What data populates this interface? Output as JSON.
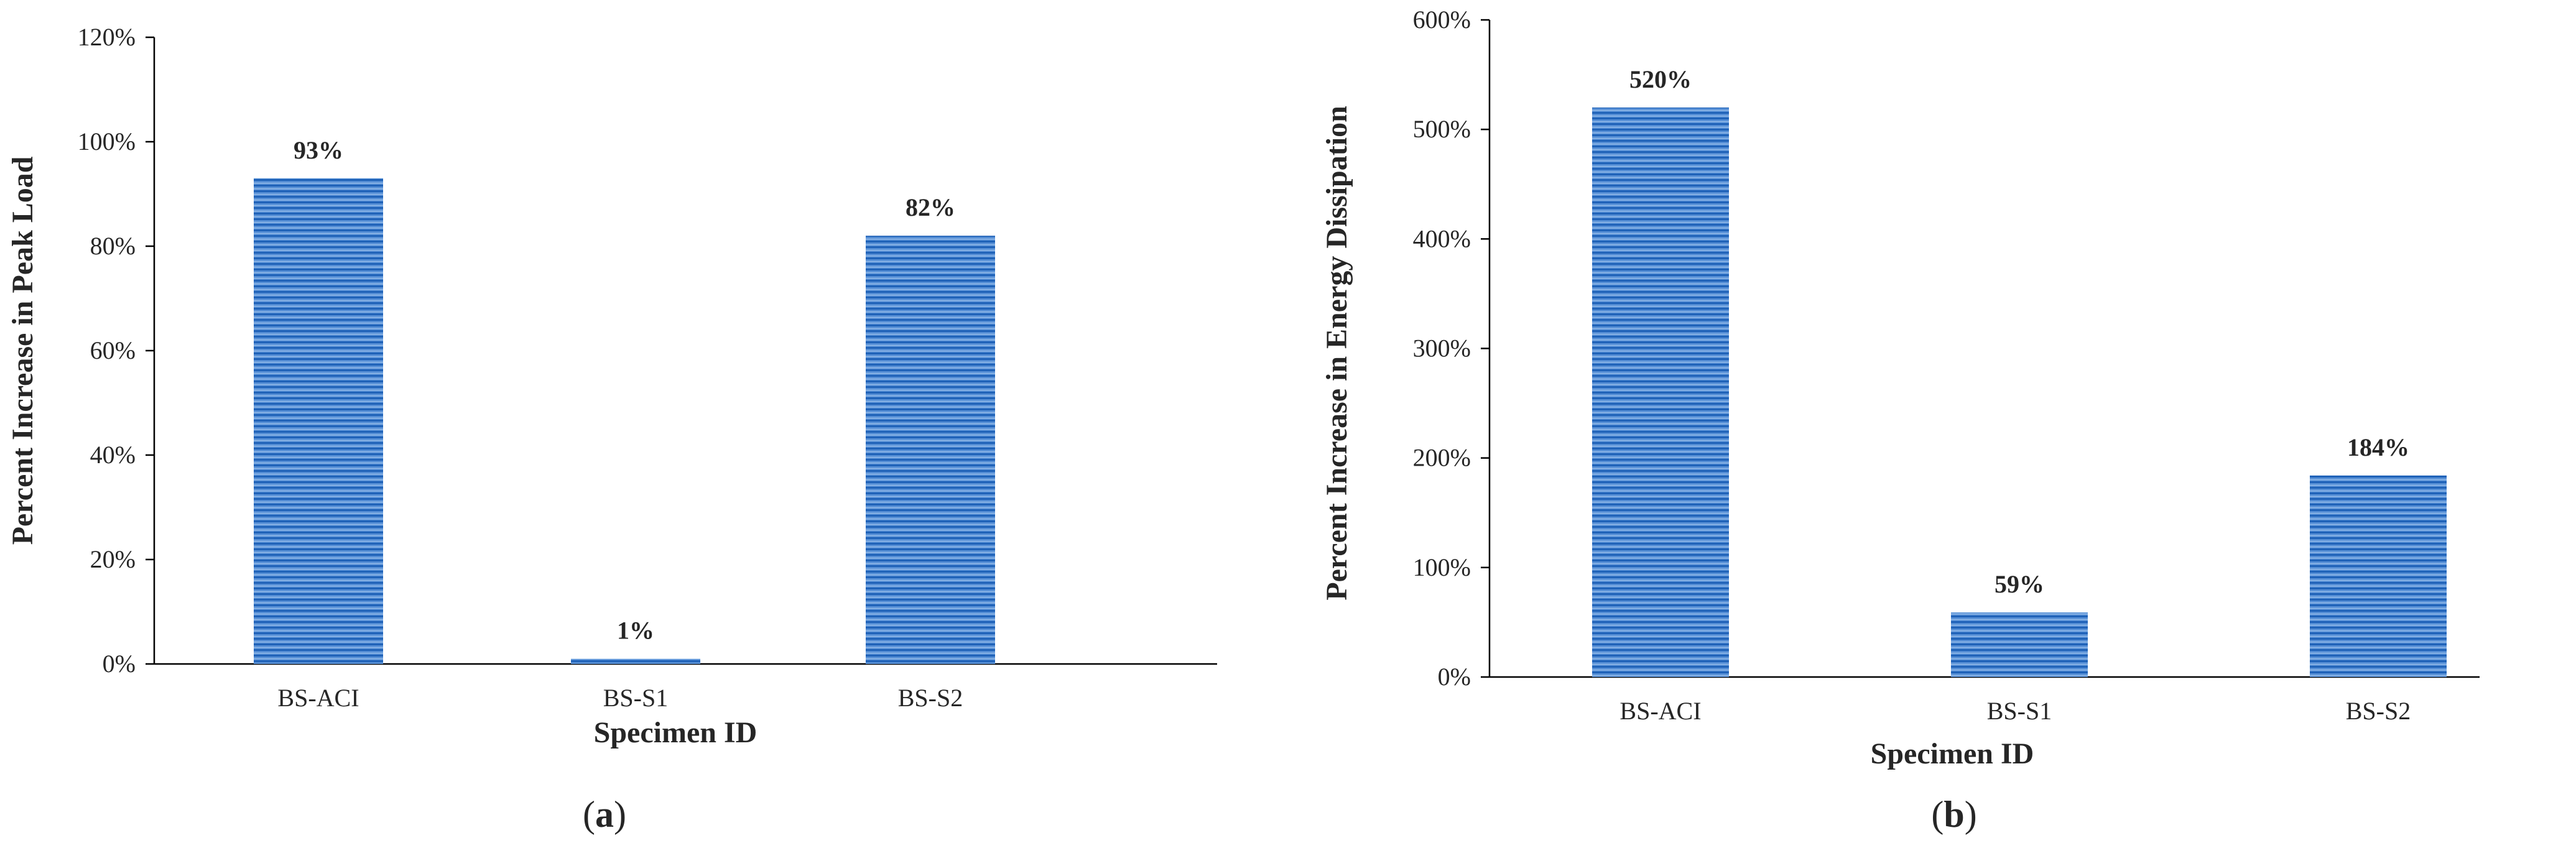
{
  "chart_data": [
    {
      "type": "bar",
      "panel_label": "a",
      "categories": [
        "BS-ACI",
        "BS-S1",
        "BS-S2"
      ],
      "values": [
        93,
        1,
        82
      ],
      "data_labels": [
        "93%",
        "1%",
        "82%"
      ],
      "xlabel": "Specimen ID",
      "ylabel": "Percent Increase in Peak Load",
      "ylim": [
        0,
        120
      ],
      "yticks": [
        "0%",
        "20%",
        "40%",
        "60%",
        "80%",
        "100%",
        "120%"
      ],
      "grid": false,
      "bar_color": "#3a78c9"
    },
    {
      "type": "bar",
      "panel_label": "b",
      "categories": [
        "BS-ACI",
        "BS-S1",
        "BS-S2"
      ],
      "values": [
        520,
        59,
        184
      ],
      "data_labels": [
        "520%",
        "59%",
        "184%"
      ],
      "xlabel": "Specimen ID",
      "ylabel": "Percent Increase in Energy Dissipation",
      "ylim": [
        0,
        600
      ],
      "yticks": [
        "0%",
        "100%",
        "200%",
        "300%",
        "400%",
        "500%",
        "600%"
      ],
      "grid": false,
      "bar_color": "#3a78c9"
    }
  ]
}
